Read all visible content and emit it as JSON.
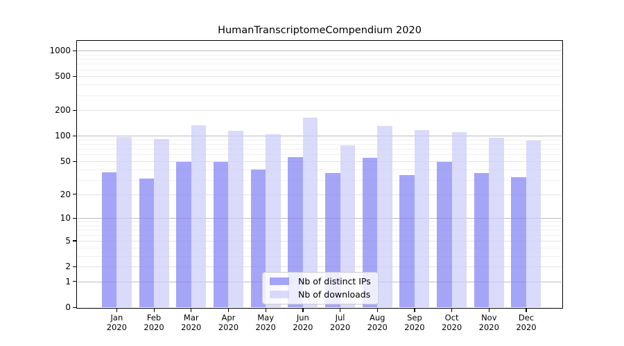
{
  "chart_data": {
    "type": "bar",
    "title": "HumanTranscriptomeCompendium 2020",
    "categories": [
      "Jan",
      "Feb",
      "Mar",
      "Apr",
      "May",
      "Jun",
      "Jul",
      "Aug",
      "Sep",
      "Oct",
      "Nov",
      "Dec"
    ],
    "category_year": "2020",
    "series": [
      {
        "name": "Nb of distinct IPs",
        "color": "rgba(135,135,245,0.75)",
        "values": [
          37,
          31,
          49,
          49,
          40,
          56,
          36,
          55,
          34,
          49,
          36,
          32
        ]
      },
      {
        "name": "Nb of downloads",
        "color": "rgba(205,205,248,0.75)",
        "values": [
          97,
          91,
          133,
          115,
          104,
          165,
          77,
          132,
          116,
          110,
          96,
          89
        ]
      }
    ],
    "yscale": "log1p",
    "y_ticks": [
      0,
      1,
      2,
      5,
      10,
      20,
      50,
      100,
      200,
      500,
      1000
    ],
    "ylim": [
      0,
      1282
    ],
    "grid": true,
    "legend_position": "inside-bottom-center",
    "colors": {
      "background": "#ffffff",
      "spine": "#000000",
      "major_grid": "#bbbbbb",
      "mid_grid": "#e2e2e2",
      "minor_grid": "#efefef",
      "legend_border": "#cccccc",
      "legend_bg": "rgba(255,255,255,0.8)"
    }
  }
}
